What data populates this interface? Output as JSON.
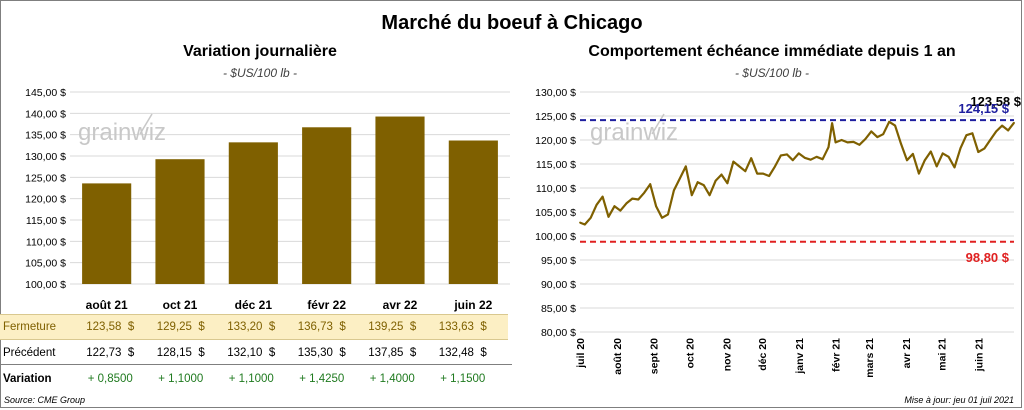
{
  "title": "Marché du boeuf à Chicago",
  "source": "Source: CME Group",
  "updated": "Mise à jour: jeu 01 juil 2021",
  "watermark": "grainwiz",
  "chart_data": [
    {
      "type": "bar",
      "title": "Variation journalière",
      "subtitle": "- $US/100 lb -",
      "categories": [
        "août 21",
        "oct 21",
        "déc 21",
        "févr 22",
        "avr 22",
        "juin 22"
      ],
      "values": [
        123.58,
        129.25,
        133.2,
        136.73,
        139.25,
        133.63
      ],
      "ylim": [
        100,
        145
      ],
      "yticks": [
        "100,00 $",
        "105,00 $",
        "110,00 $",
        "115,00 $",
        "120,00 $",
        "125,00 $",
        "130,00 $",
        "135,00 $",
        "140,00 $",
        "145,00 $"
      ],
      "grid": true,
      "bar_color": "#7f6000",
      "table": {
        "rows": [
          {
            "label": "Fermeture",
            "values": [
              "123,58  $",
              "129,25  $",
              "133,20  $",
              "136,73  $",
              "139,25  $",
              "133,63  $"
            ]
          },
          {
            "label": "Précédent",
            "values": [
              "122,73  $",
              "128,15  $",
              "132,10  $",
              "135,30  $",
              "137,85  $",
              "132,48  $"
            ]
          },
          {
            "label": "Variation",
            "values": [
              "+ 0,8500",
              "+ 1,1000",
              "+ 1,1000",
              "+ 1,4250",
              "+ 1,4000",
              "+ 1,1500"
            ]
          }
        ]
      }
    },
    {
      "type": "line",
      "title": "Comportement  échéance immédiate depuis 1 an",
      "subtitle": "- $US/100 lb -",
      "ylim": [
        80,
        130
      ],
      "yticks": [
        "80,00 $",
        "85,00 $",
        "90,00 $",
        "95,00 $",
        "100,00 $",
        "105,00 $",
        "110,00 $",
        "115,00 $",
        "120,00 $",
        "125,00 $",
        "130,00 $"
      ],
      "xticks": [
        "juil 20",
        "août 20",
        "sept 20",
        "oct 20",
        "nov 20",
        "déc 20",
        "janv 21",
        "févr 21",
        "mars 21",
        "avr 21",
        "mai 21",
        "juin 21"
      ],
      "grid": true,
      "line_color": "#7f6000",
      "series": {
        "x": [
          "2020-07-01",
          "2020-07-05",
          "2020-07-10",
          "2020-07-15",
          "2020-07-20",
          "2020-07-25",
          "2020-07-30",
          "2020-08-04",
          "2020-08-09",
          "2020-08-14",
          "2020-08-19",
          "2020-08-24",
          "2020-08-29",
          "2020-09-03",
          "2020-09-08",
          "2020-09-13",
          "2020-09-18",
          "2020-09-23",
          "2020-09-28",
          "2020-10-03",
          "2020-10-08",
          "2020-10-13",
          "2020-10-18",
          "2020-10-23",
          "2020-10-28",
          "2020-11-02",
          "2020-11-07",
          "2020-11-12",
          "2020-11-17",
          "2020-11-22",
          "2020-11-27",
          "2020-12-02",
          "2020-12-07",
          "2020-12-12",
          "2020-12-17",
          "2020-12-22",
          "2020-12-27",
          "2021-01-01",
          "2021-01-06",
          "2021-01-11",
          "2021-01-16",
          "2021-01-21",
          "2021-01-26",
          "2021-01-29",
          "2021-02-01",
          "2021-02-06",
          "2021-02-11",
          "2021-02-16",
          "2021-02-21",
          "2021-02-26",
          "2021-03-03",
          "2021-03-08",
          "2021-03-13",
          "2021-03-18",
          "2021-03-23",
          "2021-03-28",
          "2021-04-02",
          "2021-04-07",
          "2021-04-12",
          "2021-04-17",
          "2021-04-22",
          "2021-04-27",
          "2021-05-02",
          "2021-05-07",
          "2021-05-12",
          "2021-05-17",
          "2021-05-22",
          "2021-05-27",
          "2021-06-01",
          "2021-06-06",
          "2021-06-11",
          "2021-06-16",
          "2021-06-21",
          "2021-06-26",
          "2021-07-01"
        ],
        "y": [
          102.8,
          102.4,
          103.8,
          106.5,
          108.2,
          104.0,
          106.2,
          105.3,
          106.8,
          107.8,
          107.6,
          109.0,
          110.8,
          106.2,
          103.8,
          104.5,
          109.5,
          112.0,
          114.5,
          108.5,
          111.2,
          110.6,
          108.5,
          111.5,
          112.8,
          111.0,
          115.5,
          114.5,
          113.5,
          116.2,
          113.0,
          113.0,
          112.5,
          114.5,
          116.8,
          117.0,
          115.8,
          117.2,
          116.3,
          115.9,
          116.5,
          116.0,
          118.5,
          123.5,
          119.5,
          120.0,
          119.5,
          119.6,
          119.0,
          120.2,
          121.8,
          120.6,
          121.2,
          123.8,
          123.0,
          119.2,
          115.8,
          117.1,
          113.0,
          115.8,
          117.6,
          114.5,
          117.2,
          116.5,
          114.3,
          118.3,
          121.0,
          121.4,
          117.5,
          118.2,
          120.0,
          121.8,
          123.0,
          122.0,
          123.58
        ]
      },
      "annotations": [
        {
          "label": "124,15 $",
          "y": 124.15,
          "color": "#1f1f9f"
        },
        {
          "label": "123,58 $",
          "y": 123.58,
          "color": "#000000"
        },
        {
          "label": "98,80 $",
          "y": 98.8,
          "color": "#e02020"
        }
      ]
    }
  ]
}
